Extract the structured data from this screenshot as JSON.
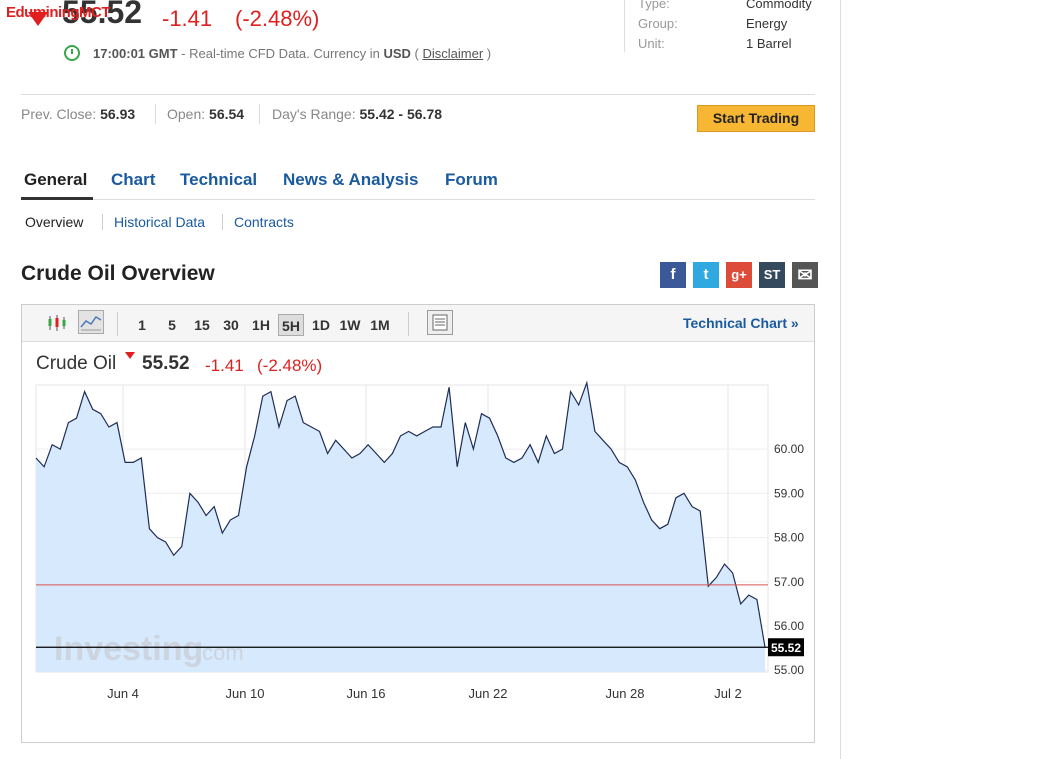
{
  "watermark": "EduminingMCT",
  "quote": {
    "price": "55.52",
    "change": "-1.41",
    "change_pct": "(-2.48%)",
    "time": "17:00:01 GMT",
    "desc": "- Real-time CFD Data. Currency in",
    "currency": "USD",
    "paren_open": "(",
    "disclaimer": "Disclaimer",
    "paren_close": ")"
  },
  "info": {
    "type_label": "Type:",
    "type_value": "Commodity",
    "group_label": "Group:",
    "group_value": "Energy",
    "unit_label": "Unit:",
    "unit_value": "1 Barrel"
  },
  "stats": {
    "prev_label": "Prev. Close:",
    "prev_value": "56.93",
    "open_label": "Open:",
    "open_value": "56.54",
    "range_label": "Day's Range:",
    "range_value": "55.42 - 56.78"
  },
  "start_trading": "Start Trading",
  "tabs": [
    "General",
    "Chart",
    "Technical",
    "News & Analysis",
    "Forum"
  ],
  "subtabs": [
    "Overview",
    "Historical Data",
    "Contracts"
  ],
  "section_title": "Crude Oil Overview",
  "share_icons": [
    "f",
    "t",
    "g+",
    "ST",
    "✉"
  ],
  "toolbar": {
    "periods": [
      "1",
      "5",
      "15",
      "30",
      "1H",
      "5H",
      "1D",
      "1W",
      "1M"
    ],
    "selected": "5H",
    "technical_chart": "Technical Chart »"
  },
  "chart_header": {
    "name": "Crude Oil",
    "price": "55.52",
    "change": "-1.41",
    "change_pct": "(-2.48%)"
  },
  "chart_data": {
    "type": "area",
    "y_ticks": [
      "60.00",
      "59.00",
      "58.00",
      "57.00",
      "56.00",
      "55.00"
    ],
    "ylim": [
      54.96,
      61.45
    ],
    "x_ticks": [
      "Jun 4",
      "Jun 10",
      "Jun 16",
      "Jun 22",
      "Jun 28",
      "Jul 2"
    ],
    "prev_close_line": 56.93,
    "last_price": "55.52",
    "last_value": 55.52,
    "watermark": "Investing.com",
    "fill_color": "#d6e9fd",
    "line_color": "#1f2d55",
    "values": [
      59.8,
      59.6,
      60.1,
      60.0,
      60.6,
      60.7,
      61.3,
      60.9,
      60.8,
      60.5,
      60.6,
      59.7,
      59.7,
      59.8,
      58.2,
      58.0,
      57.9,
      57.6,
      57.8,
      59.0,
      58.8,
      58.5,
      58.7,
      58.1,
      58.4,
      58.5,
      59.6,
      60.3,
      61.2,
      61.3,
      60.5,
      61.1,
      61.2,
      60.6,
      60.5,
      60.4,
      59.9,
      60.2,
      60.0,
      59.8,
      59.9,
      60.1,
      59.9,
      59.7,
      59.9,
      60.3,
      60.4,
      60.3,
      60.4,
      60.5,
      60.5,
      61.4,
      59.6,
      60.6,
      60.0,
      60.8,
      60.7,
      60.3,
      59.8,
      59.7,
      59.8,
      60.1,
      59.7,
      60.3,
      59.9,
      60.0,
      61.3,
      61.0,
      61.5,
      60.4,
      60.2,
      60.0,
      59.7,
      59.6,
      59.3,
      58.8,
      58.4,
      58.2,
      58.3,
      58.9,
      59.0,
      58.7,
      58.6,
      56.9,
      57.1,
      57.4,
      57.2,
      56.5,
      56.7,
      56.6,
      55.52
    ]
  },
  "colors": {
    "accent": "#1a5aa0",
    "down": "#e02020",
    "button": "#f7b733"
  }
}
